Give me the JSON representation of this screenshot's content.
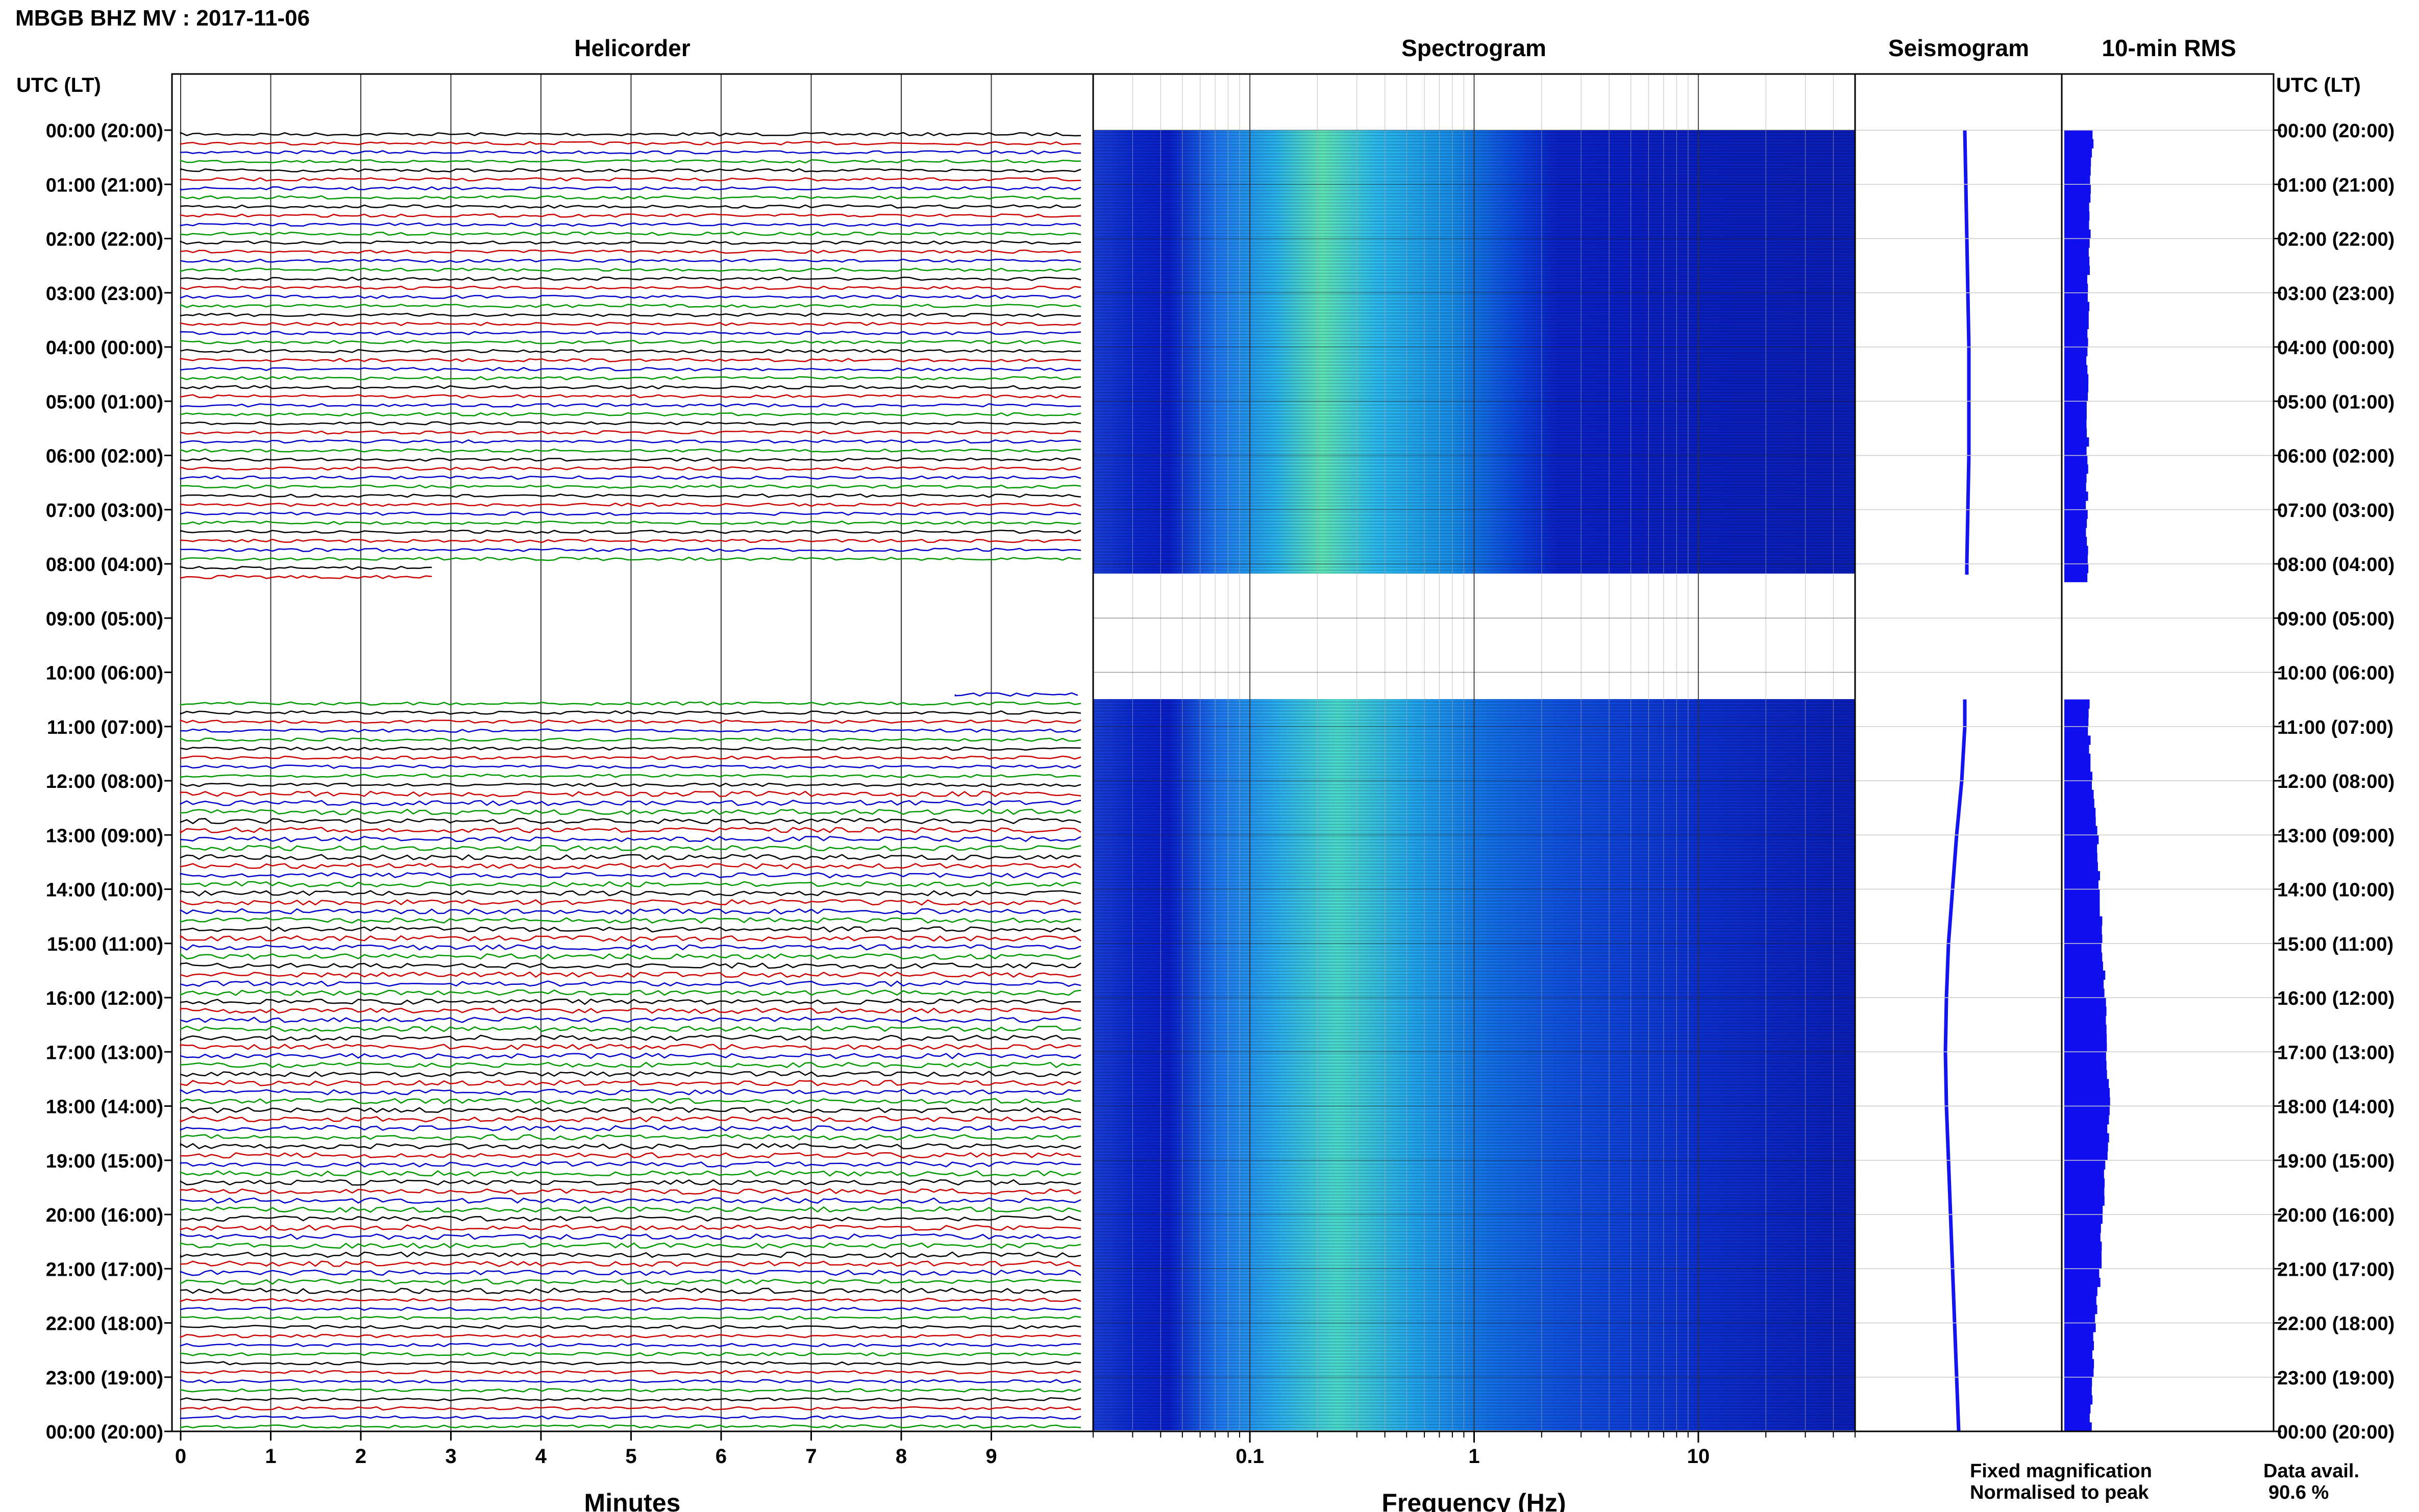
{
  "chart_data": {
    "type": "heatmap",
    "title": "MBGB BHZ MV : 2017-11-06",
    "panels": {
      "helicorder": {
        "title": "Helicorder",
        "xlabel": "Minutes",
        "xticks": [
          "0",
          "1",
          "2",
          "3",
          "4",
          "5",
          "6",
          "7",
          "8",
          "9"
        ],
        "xlim": [
          0,
          10
        ],
        "trace_colors": [
          "#000000",
          "#cc0000",
          "#0000cc",
          "#009900"
        ]
      },
      "spectrogram": {
        "title": "Spectrogram",
        "xlabel": "Frequency (Hz)",
        "xscale": "log",
        "xlim": [
          0.02,
          50
        ],
        "xticks": [
          {
            "v": 0.1,
            "label": "0.1"
          },
          {
            "v": 1,
            "label": "1"
          },
          {
            "v": 10,
            "label": "10"
          }
        ],
        "colormap": "jet"
      },
      "seismogram": {
        "title": "Seismogram"
      },
      "rms": {
        "title": "10-min RMS"
      }
    },
    "y_axis": {
      "left_label": "UTC (LT)",
      "right_label": "UTC (LT)",
      "hour_labels": [
        "00:00 (20:00)",
        "01:00 (21:00)",
        "02:00 (22:00)",
        "03:00 (23:00)",
        "04:00 (00:00)",
        "05:00 (01:00)",
        "06:00 (02:00)",
        "07:00 (03:00)",
        "08:00 (04:00)",
        "09:00 (05:00)",
        "10:00 (06:00)",
        "11:00 (07:00)",
        "12:00 (08:00)",
        "13:00 (09:00)",
        "14:00 (10:00)",
        "15:00 (11:00)",
        "16:00 (12:00)",
        "17:00 (13:00)",
        "18:00 (14:00)",
        "19:00 (15:00)",
        "20:00 (16:00)",
        "21:00 (17:00)",
        "22:00 (18:00)",
        "23:00 (19:00)",
        "00:00 (20:00)"
      ]
    },
    "data_gaps_utc_hours": [
      [
        8.2,
        10.5
      ]
    ],
    "seismogram_offset": [
      0.3,
      0.35,
      0.4,
      0.45,
      0.5,
      0.5,
      0.5,
      0.45,
      0.4,
      null,
      null,
      0.3,
      0.15,
      -0.1,
      -0.3,
      -0.5,
      -0.6,
      -0.65,
      -0.6,
      -0.5,
      -0.4,
      -0.3,
      -0.2,
      -0.1,
      0.0
    ],
    "rms_level": [
      0.42,
      0.38,
      0.36,
      0.35,
      0.34,
      0.34,
      0.34,
      0.33,
      0.33,
      null,
      null,
      0.36,
      0.4,
      0.48,
      0.52,
      0.55,
      0.6,
      0.62,
      0.66,
      0.6,
      0.55,
      0.52,
      0.44,
      0.4,
      0.38
    ],
    "legend": {
      "fixed": {
        "text": "Fixed magnification",
        "color": "#1010ee"
      },
      "normalised": {
        "text": "Normalised to peak",
        "color": "#ee1010"
      }
    },
    "data_availability": {
      "label": "Data avail.",
      "value": "90.6 %"
    }
  }
}
